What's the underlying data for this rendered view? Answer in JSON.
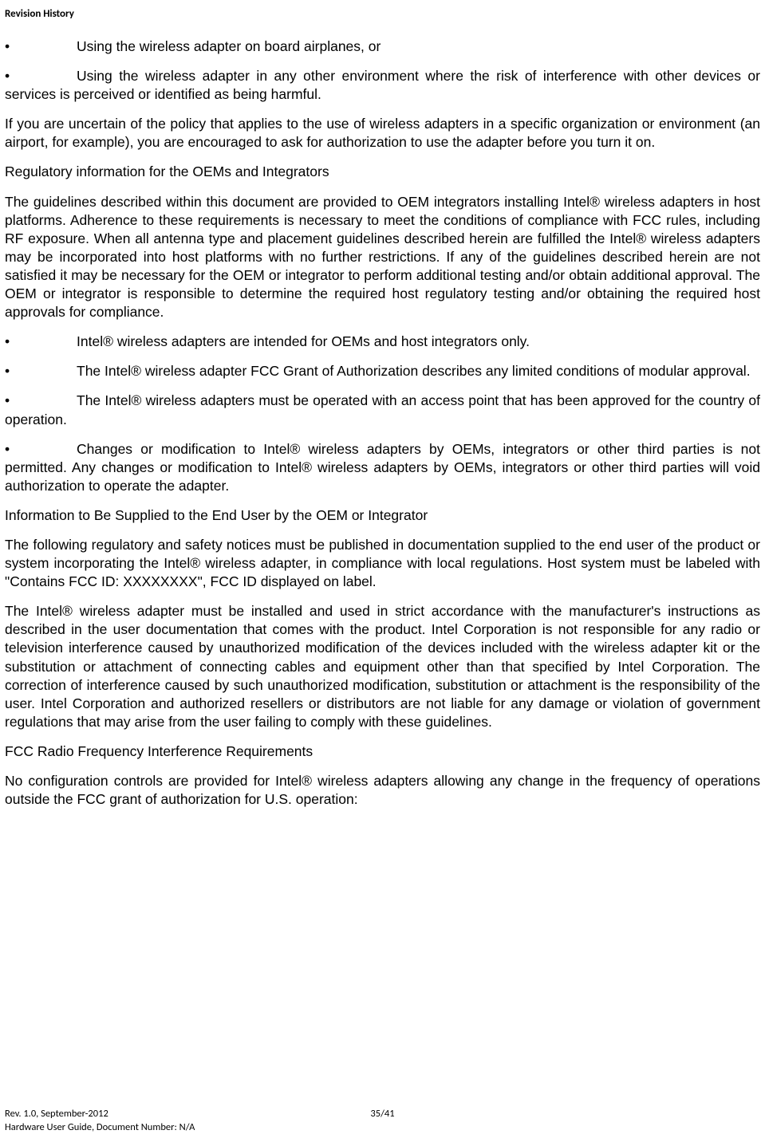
{
  "header": {
    "title": "Revision History"
  },
  "body": {
    "bullet1": "Using the wireless adapter on board airplanes, or",
    "bullet2": "Using the wireless adapter in any other environment where the risk of interference with other devices or services is perceived or identified as being harmful.",
    "para1": "If you are uncertain of the policy that applies to the use of wireless adapters in a specific organization or environment (an airport, for example), you are encouraged to ask for authorization to use the adapter before you turn it on.",
    "para2": "Regulatory information for the OEMs and Integrators",
    "para3": "The guidelines described within this document are provided to OEM integrators installing Intel® wireless adapters in host platforms. Adherence to these requirements is necessary to meet the conditions of compliance with FCC rules, including RF exposure. When all antenna type and placement guidelines described herein are fulfilled the Intel® wireless adapters may be incorporated into host platforms with no further restrictions. If any of the guidelines described herein are not satisfied it may be necessary for the OEM or integrator to perform additional testing and/or obtain additional approval. The OEM or integrator is responsible to determine the required host regulatory testing and/or obtaining the required host approvals for compliance.",
    "bullet3": "Intel® wireless adapters are intended for OEMs and host integrators only.",
    "bullet4": "The Intel® wireless adapter FCC Grant of Authorization describes any limited conditions of modular approval.",
    "bullet5": "The Intel® wireless adapters must be operated with an access point that has been approved for the country of operation.",
    "bullet6": "Changes or modification to Intel® wireless adapters by OEMs, integrators or other third parties is not permitted. Any changes or modification to Intel® wireless adapters by OEMs, integrators or other third parties will void authorization to operate the adapter.",
    "para4": "Information to Be Supplied to the End User by the OEM or Integrator",
    "para5": "The following regulatory and safety notices must be published in documentation supplied to the end user of the product or system incorporating the Intel® wireless adapter, in compliance with local regulations. Host system must be labeled with \"Contains FCC ID: XXXXXXXX\", FCC ID displayed on label.",
    "para6": "The Intel® wireless adapter must be installed and used in strict accordance with the manufacturer's instructions as described in the user documentation that comes with the product. Intel Corporation is not responsible for any radio or television interference caused by unauthorized modification of the devices included with the wireless adapter kit or the substitution or attachment of connecting cables and equipment other than that specified by Intel Corporation. The correction of interference caused by such unauthorized modification, substitution or attachment is the responsibility of the user. Intel Corporation and authorized resellers or distributors are not liable for any damage or violation of government regulations that may arise from the user failing to comply with these guidelines.",
    "para7": "FCC Radio Frequency Interference Requirements",
    "para8": "No configuration controls are provided for Intel® wireless adapters allowing any change in the frequency of operations outside the FCC grant of authorization for U.S. operation:"
  },
  "footer": {
    "line1_left": "Rev. 1.0, September-2012",
    "line1_center": "35/41",
    "line2_left": "Hardware User Guide, Document Number: N/A"
  }
}
